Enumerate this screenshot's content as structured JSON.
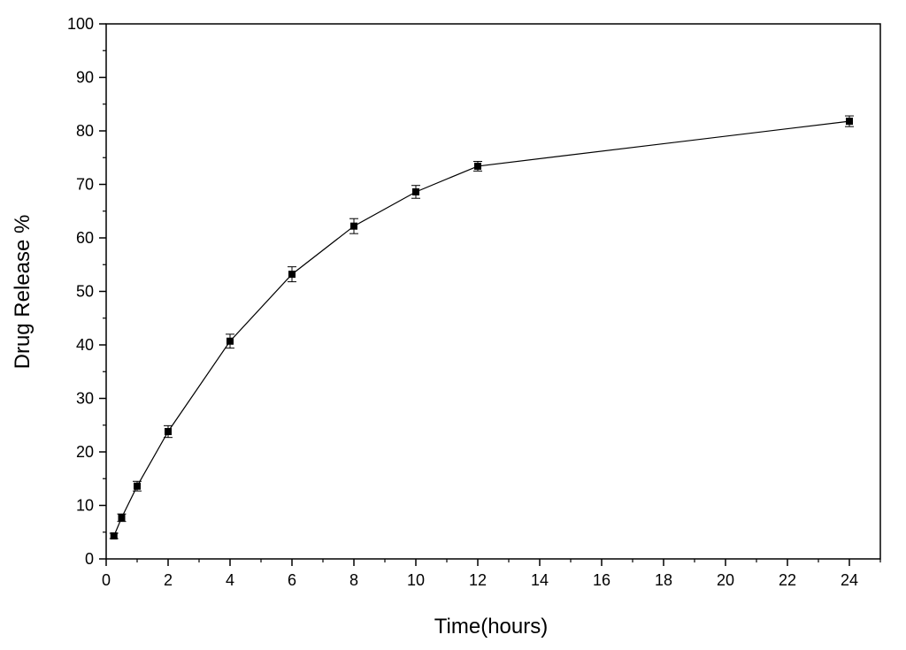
{
  "chart_data": {
    "type": "line",
    "title": "",
    "xlabel": "Time(hours)",
    "ylabel": "Drug Release %",
    "xlim": [
      0,
      25
    ],
    "ylim": [
      0,
      100
    ],
    "x_ticks": [
      "0",
      "2",
      "4",
      "6",
      "8",
      "10",
      "12",
      "14",
      "16",
      "18",
      "20",
      "22",
      "24"
    ],
    "y_ticks": [
      "0",
      "10",
      "20",
      "30",
      "40",
      "50",
      "60",
      "70",
      "80",
      "90",
      "100"
    ],
    "grid": false,
    "legend": "none",
    "series": [
      {
        "x": [
          0.25,
          0.5,
          1,
          2,
          4,
          6,
          8,
          10,
          12,
          24
        ],
        "y": [
          4.3,
          7.7,
          13.6,
          23.8,
          40.7,
          53.2,
          62.2,
          68.6,
          73.4,
          81.8
        ],
        "error": [
          0.5,
          0.7,
          0.9,
          1.1,
          1.3,
          1.4,
          1.4,
          1.2,
          0.9,
          1.0
        ],
        "color": "#000000",
        "marker": "square"
      }
    ]
  }
}
